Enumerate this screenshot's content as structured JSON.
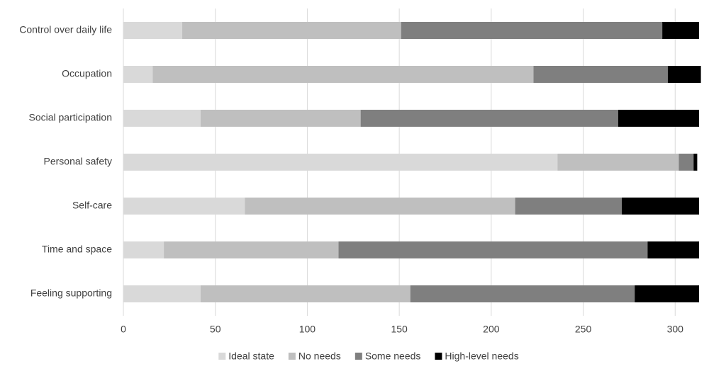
{
  "chart_data": {
    "type": "stacked-bar-horizontal",
    "categories": [
      "Control over daily life",
      "Occupation",
      "Social participation",
      "Personal safety",
      "Self-care",
      "Time and space",
      "Feeling supporting"
    ],
    "series": [
      {
        "name": "Ideal state",
        "color": "#d9d9d9",
        "values": [
          32,
          16,
          42,
          236,
          66,
          22,
          42
        ]
      },
      {
        "name": "No needs",
        "color": "#bfbfbf",
        "values": [
          119,
          207,
          87,
          66,
          147,
          95,
          114
        ]
      },
      {
        "name": "Some needs",
        "color": "#7f7f7f",
        "values": [
          142,
          73,
          140,
          8,
          58,
          168,
          122
        ]
      },
      {
        "name": "High-level needs",
        "color": "#000000",
        "values": [
          20,
          18,
          44,
          2,
          42,
          28,
          35
        ]
      }
    ],
    "xlim": [
      0,
      313
    ],
    "xticks": [
      0,
      50,
      100,
      150,
      200,
      250,
      300
    ],
    "grid": true,
    "legend": "bottom"
  }
}
